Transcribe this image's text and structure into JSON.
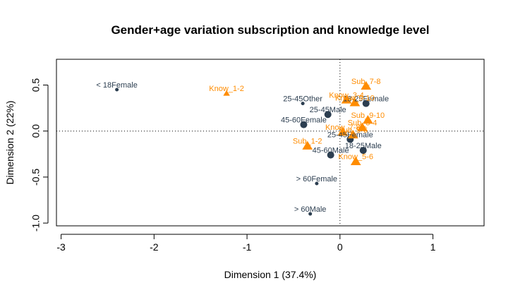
{
  "chart_data": {
    "type": "scatter",
    "title": "Gender+age variation subscription and knowledge level",
    "xlabel": "Dimension 1 (37.4%)",
    "ylabel": "Dimension 2 (22%)",
    "xlim": [
      -3.05,
      1.55
    ],
    "ylim": [
      -1.03,
      0.78
    ],
    "xticks": [
      -3,
      -2,
      -1,
      0,
      1
    ],
    "yticks": [
      -1.0,
      -0.5,
      0.0,
      0.5
    ],
    "xtick_labels": [
      "-3",
      "-2",
      "-1",
      "0",
      "1"
    ],
    "ytick_labels": [
      "-1.0",
      "-0.5",
      "0.0",
      "0.5"
    ],
    "reference_lines": {
      "x": 0,
      "y": 0,
      "style": "dotted"
    },
    "colors": {
      "demographic": "#2c3e50",
      "knowledge_subscription": "#ff8c00"
    },
    "series": [
      {
        "group": "demographic",
        "marker": "circle",
        "points": [
          {
            "label": "< 18Female",
            "x": -2.4,
            "y": 0.45,
            "size": "small"
          },
          {
            "label": "25-45Other",
            "x": -0.4,
            "y": 0.3,
            "size": "small"
          },
          {
            "label": "18-25Female",
            "x": 0.28,
            "y": 0.3,
            "size": "large"
          },
          {
            "label": "25-45Male",
            "x": -0.13,
            "y": 0.18,
            "size": "large"
          },
          {
            "label": "45-60Female",
            "x": -0.39,
            "y": 0.07,
            "size": "large"
          },
          {
            "label": "25-45Female",
            "x": 0.11,
            "y": -0.09,
            "size": "large"
          },
          {
            "label": "18-25Male",
            "x": 0.25,
            "y": -0.21,
            "size": "large"
          },
          {
            "label": "45-60Male",
            "x": -0.1,
            "y": -0.26,
            "size": "large"
          },
          {
            "label": "> 60Female",
            "x": -0.25,
            "y": -0.57,
            "size": "small"
          },
          {
            "label": "> 60Male",
            "x": -0.32,
            "y": -0.9,
            "size": "small"
          }
        ]
      },
      {
        "group": "knowledge_subscription",
        "marker": "triangle",
        "points": [
          {
            "label": "Know_1-2",
            "x": -1.22,
            "y": 0.41,
            "size": "small"
          },
          {
            "label": "Sub_7-8",
            "x": 0.28,
            "y": 0.49,
            "size": "large"
          },
          {
            "label": "Know_3-4",
            "x": 0.07,
            "y": 0.34,
            "size": "large"
          },
          {
            "label": "Know_9-10",
            "x": 0.16,
            "y": 0.31,
            "size": "large"
          },
          {
            "label": "Sub_9-10",
            "x": 0.3,
            "y": 0.12,
            "size": "large"
          },
          {
            "label": "Sub_3-4",
            "x": 0.24,
            "y": 0.04,
            "size": "large"
          },
          {
            "label": "Know_7-8",
            "x": 0.03,
            "y": -0.01,
            "size": "large"
          },
          {
            "label": "Sub_5-6",
            "x": 0.14,
            "y": -0.04,
            "size": "large"
          },
          {
            "label": "Sub_1-2",
            "x": -0.35,
            "y": -0.16,
            "size": "large"
          },
          {
            "label": "Know_5-6",
            "x": 0.17,
            "y": -0.33,
            "size": "large"
          }
        ]
      }
    ]
  }
}
